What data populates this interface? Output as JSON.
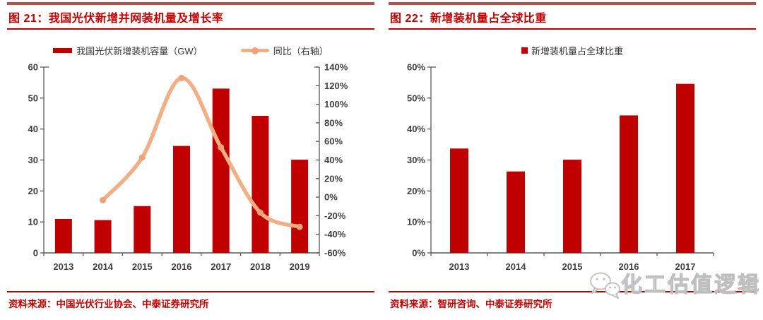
{
  "colors": {
    "accent": "#C00000",
    "bar": "#C00000",
    "line": "#F2AE85",
    "line_marker": "#EFA278",
    "axis": "#595959",
    "label": "#404040",
    "rule_thick": "#BE4C48",
    "watermark": "#BFBFBF"
  },
  "figure21": {
    "title": "图 21：我国光伏新增并网装机量及增长率",
    "source": "资料来源：中国光伏行业协会、中泰证券研究所"
  },
  "figure22": {
    "title": "图 22：新增装机量占全球比重",
    "source": "资料来源：智研咨询、中泰证券研究所"
  },
  "watermark": {
    "text": "化工估值逻辑",
    "icon": "wechat-icon"
  },
  "chart_data": [
    {
      "type": "bar+line",
      "title": "我国光伏新增并网装机量及增长率",
      "categories": [
        "2013",
        "2014",
        "2015",
        "2016",
        "2017",
        "2018",
        "2019"
      ],
      "series": [
        {
          "name": "我国光伏新增装机容量（GW）",
          "chart": "bar",
          "axis": "left",
          "values": [
            10.95,
            10.6,
            15.13,
            34.54,
            53.06,
            44.26,
            30.1
          ]
        },
        {
          "name": "同比（右轴）",
          "chart": "line",
          "axis": "right",
          "values": [
            null,
            -3.2,
            42.7,
            128.3,
            53.6,
            -16.6,
            -32.0
          ]
        }
      ],
      "y_left": {
        "min": 0,
        "max": 60,
        "step": 10,
        "labels": [
          "0",
          "10",
          "20",
          "30",
          "40",
          "50",
          "60"
        ]
      },
      "y_right": {
        "min": -60,
        "max": 140,
        "step": 20,
        "labels": [
          "-60%",
          "-40%",
          "-20%",
          "0%",
          "20%",
          "40%",
          "60%",
          "80%",
          "100%",
          "120%",
          "140%"
        ]
      },
      "legend_position": "top",
      "gridlines": false
    },
    {
      "type": "bar",
      "title": "新增装机量占全球比重",
      "categories": [
        "2013",
        "2014",
        "2015",
        "2016",
        "2017"
      ],
      "series": [
        {
          "name": "新增装机量占全球比重",
          "chart": "bar",
          "axis": "left",
          "values": [
            33.7,
            26.3,
            30.1,
            44.4,
            54.6
          ]
        }
      ],
      "y_left": {
        "min": 0,
        "max": 60,
        "step": 10,
        "labels": [
          "0%",
          "10%",
          "20%",
          "30%",
          "40%",
          "50%",
          "60%"
        ]
      },
      "legend_position": "top",
      "gridlines": false
    }
  ]
}
